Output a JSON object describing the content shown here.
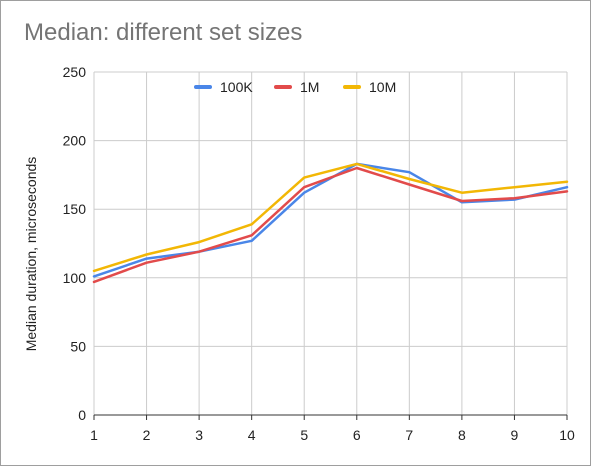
{
  "chart_data": {
    "type": "line",
    "title": "Median: different set sizes",
    "xlabel": "",
    "ylabel": "Median duration, microseconds",
    "x": [
      1,
      2,
      3,
      4,
      5,
      6,
      7,
      8,
      9,
      10
    ],
    "ylim": [
      0,
      250
    ],
    "yticks": [
      0,
      50,
      100,
      150,
      200,
      250
    ],
    "grid": true,
    "legend_position": "top",
    "series": [
      {
        "name": "100K",
        "color": "#4a86e8",
        "values": [
          101,
          114,
          119,
          127,
          162,
          183,
          177,
          155,
          157,
          166
        ]
      },
      {
        "name": "1M",
        "color": "#e24b4b",
        "values": [
          97,
          111,
          119,
          131,
          166,
          180,
          168,
          156,
          158,
          163
        ]
      },
      {
        "name": "10M",
        "color": "#f2b705",
        "values": [
          105,
          117,
          126,
          139,
          173,
          183,
          172,
          162,
          166,
          170
        ]
      }
    ]
  }
}
